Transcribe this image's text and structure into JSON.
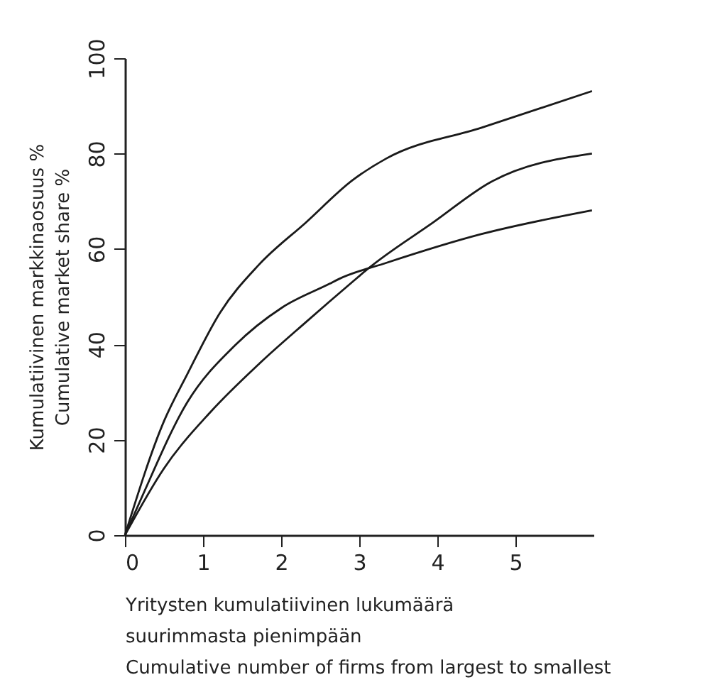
{
  "chart_data": {
    "type": "line",
    "xlabel": "Yritysten kumulatiivinen lukumäärä\nsuurimmasta pienimpään\nCumulative number of firms from largest to smallest",
    "ylabel": "Kumulatiivinen markkinaosuus %\nCumulative market share %",
    "xlim": [
      0,
      6
    ],
    "xticks": [
      0,
      1,
      2,
      3,
      4,
      5
    ],
    "ylim": [
      0,
      100
    ],
    "yticks": [
      0,
      20,
      40,
      60,
      80,
      100
    ],
    "grid": false,
    "legend": false,
    "marker": "none",
    "line_style": "solid",
    "series": [
      {
        "color": "#1a1a1a",
        "x": [
          0,
          0.5,
          0.8,
          1.22,
          1.71,
          2.32,
          2.92,
          3.35,
          4.56,
          5.98
        ],
        "values": [
          0,
          23.9,
          33.8,
          46.7,
          56.6,
          65.6,
          74.5,
          79,
          85.4,
          93.1
        ]
      },
      {
        "color": "#1a1a1a",
        "x": [
          0,
          0.5,
          1.1,
          1.71,
          2.32,
          2.92,
          3.1,
          3.95,
          4.68,
          5.98
        ],
        "values": [
          0,
          14,
          25.9,
          35.8,
          44.7,
          53.2,
          55.7,
          65.6,
          74,
          80
        ]
      },
      {
        "color": "#1a1a1a",
        "x": [
          0,
          0.19,
          0.8,
          1.41,
          2.01,
          2.62,
          2.74,
          3.35,
          4.56,
          5.98
        ],
        "values": [
          0,
          7,
          27.9,
          39.8,
          47.7,
          52.7,
          53.7,
          57.1,
          63.1,
          68.1
        ]
      }
    ]
  }
}
